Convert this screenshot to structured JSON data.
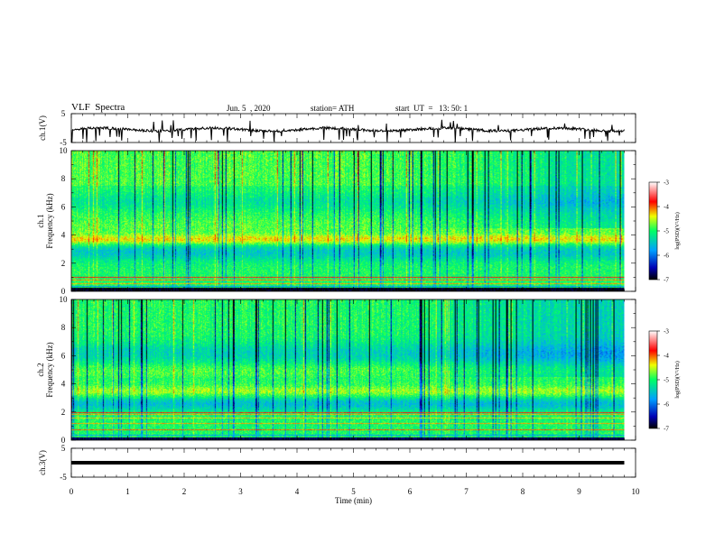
{
  "header": {
    "title": "VLF  Spectra",
    "date": "Jun. 5  , 2020",
    "station": "station= ATH",
    "start": "start  UT  =   13: 50: 1"
  },
  "chart_data": [
    {
      "type": "line",
      "id": "ch1-waveform",
      "ylabel": "ch.1(V)",
      "ylim": [
        -5,
        5
      ],
      "yticks": [
        "5",
        "-5"
      ],
      "xlim": [
        0,
        10
      ],
      "x_data_max": 9.8,
      "baseline": -0.5,
      "description_values": "noisy trace near -0.5 V with spikes down to about -5 V"
    },
    {
      "type": "heatmap",
      "id": "ch1-spectrogram",
      "ylabel": "ch.1\nFrequency (kHz)",
      "ylim": [
        0,
        10
      ],
      "yticks": [
        "0",
        "2",
        "4",
        "6",
        "8",
        "10"
      ],
      "xlim": [
        0,
        10
      ],
      "x_data_max": 9.8,
      "colorbar": {
        "label": "log(PSD)(V²/Hz)",
        "range": [
          -7,
          -3
        ],
        "ticks": [
          "-3",
          "-4",
          "-5",
          "-6",
          "-7"
        ]
      }
    },
    {
      "type": "heatmap",
      "id": "ch2-spectrogram",
      "ylabel": "ch.2\nFrequency (kHz)",
      "ylim": [
        0,
        10
      ],
      "yticks": [
        "0",
        "2",
        "4",
        "6",
        "8",
        "10"
      ],
      "xlim": [
        0,
        10
      ],
      "x_data_max": 9.8,
      "colorbar": {
        "label": "log(PSD)(V²/Hz)",
        "range": [
          -7,
          -3
        ],
        "ticks": [
          "-3",
          "-4",
          "-5",
          "-6",
          "-7"
        ]
      }
    },
    {
      "type": "line",
      "id": "ch3-waveform",
      "ylabel": "ch.3(V)",
      "ylim": [
        -5,
        5
      ],
      "yticks": [
        "5",
        "-5"
      ],
      "xlim": [
        0,
        10
      ],
      "x_data_max": 9.8,
      "baseline": 0
    }
  ],
  "xaxis": {
    "label": "Time  (min)",
    "ticks": [
      "0",
      "1",
      "2",
      "3",
      "4",
      "5",
      "6",
      "7",
      "8",
      "9",
      "10"
    ]
  },
  "colors": {
    "trace": "#000000",
    "scale": [
      "#000000",
      "#0000c8",
      "#00c8ff",
      "#00ff50",
      "#ffff00",
      "#ff0000",
      "#ffffff"
    ]
  }
}
